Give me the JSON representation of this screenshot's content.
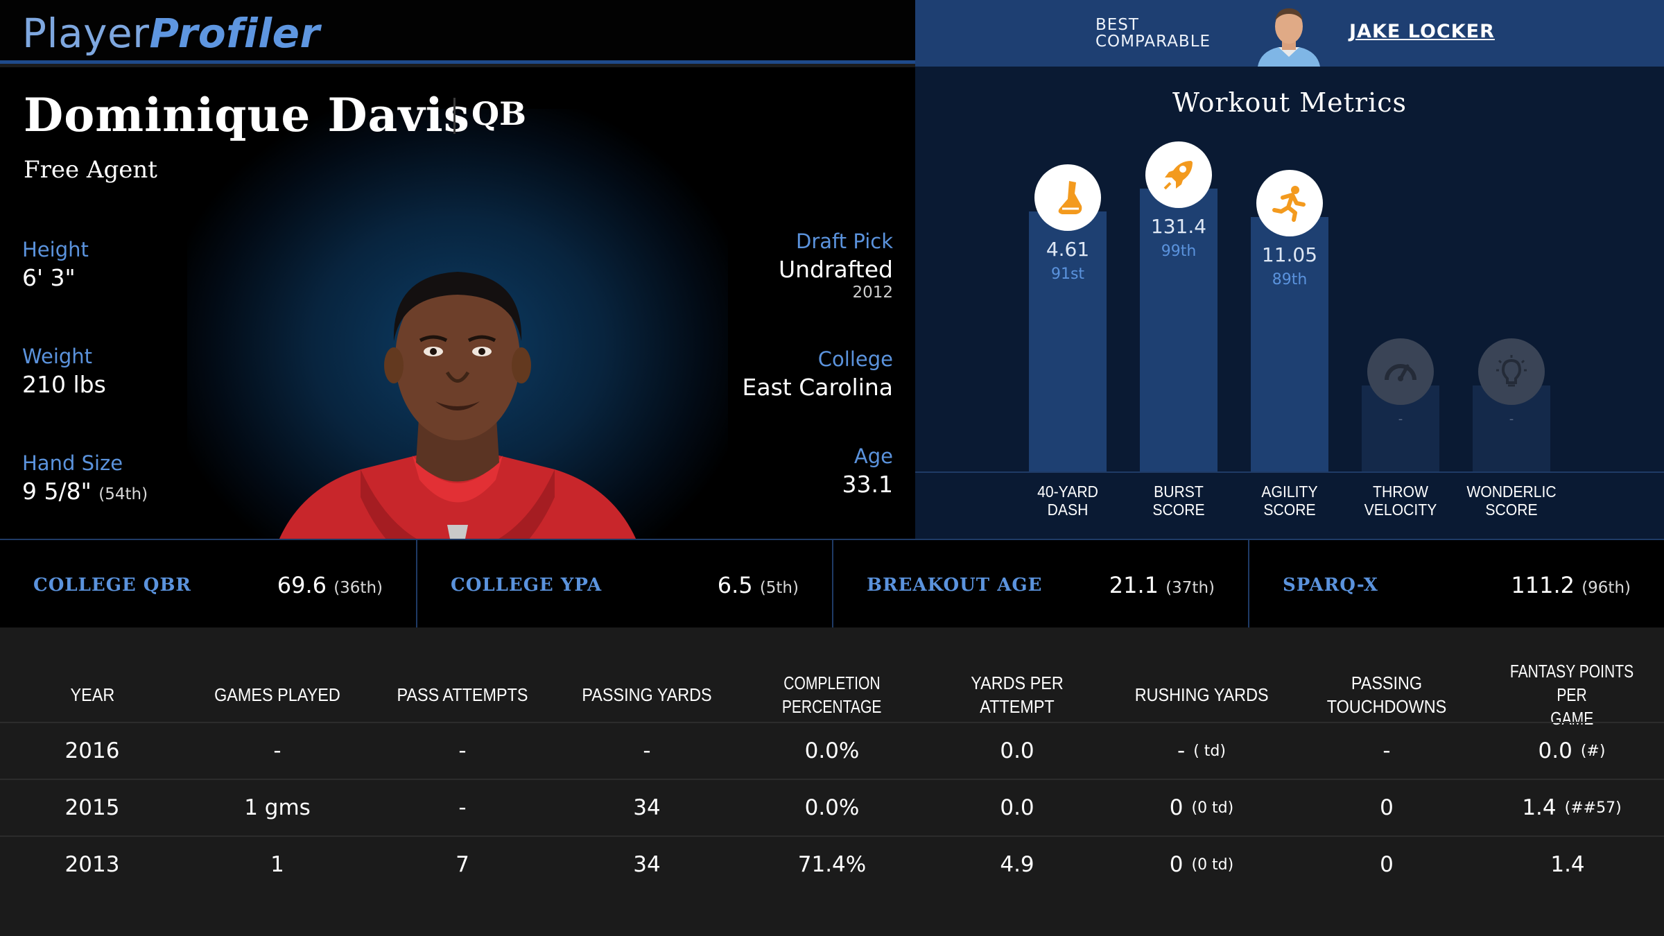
{
  "brand": {
    "part1": "Player",
    "part2": "Profiler"
  },
  "comparable": {
    "label_line1": "BEST",
    "label_line2": "COMPARABLE",
    "name": "JAKE LOCKER"
  },
  "player": {
    "name": "Dominique Davis",
    "position": "QB",
    "team": "Free Agent",
    "height_label": "Height",
    "height": "6' 3\"",
    "weight_label": "Weight",
    "weight": "210 lbs",
    "hand_label": "Hand Size",
    "hand": "9 5/8\"",
    "hand_pct": "(54th)",
    "draft_label": "Draft Pick",
    "draft": "Undrafted",
    "draft_year": "2012",
    "college_label": "College",
    "college": "East Carolina",
    "age_label": "Age",
    "age": "33.1"
  },
  "workout": {
    "title": "Workout Metrics",
    "metrics": [
      {
        "label1": "40-YARD",
        "label2": "DASH",
        "value": "4.61",
        "pct": "91st",
        "percentile": 91,
        "icon": "shoe-icon",
        "active": true
      },
      {
        "label1": "BURST",
        "label2": "SCORE",
        "value": "131.4",
        "pct": "99th",
        "percentile": 99,
        "icon": "rocket-icon",
        "active": true
      },
      {
        "label1": "AGILITY",
        "label2": "SCORE",
        "value": "11.05",
        "pct": "89th",
        "percentile": 89,
        "icon": "runner-icon",
        "active": true
      },
      {
        "label1": "THROW",
        "label2": "VELOCITY",
        "value": "-",
        "pct": "",
        "percentile": 30,
        "icon": "speedometer-icon",
        "active": false
      },
      {
        "label1": "WONDERLIC",
        "label2": "SCORE",
        "value": "-",
        "pct": "",
        "percentile": 30,
        "icon": "lightbulb-icon",
        "active": false
      }
    ]
  },
  "key_stats": [
    {
      "label": "COLLEGE QBR",
      "value": "69.6",
      "pct": "(36th)"
    },
    {
      "label": "COLLEGE YPA",
      "value": "6.5",
      "pct": "(5th)"
    },
    {
      "label": "BREAKOUT AGE",
      "value": "21.1",
      "pct": "(37th)"
    },
    {
      "label": "SPARQ-X",
      "value": "111.2",
      "pct": "(96th)"
    }
  ],
  "table": {
    "headers": [
      [
        "YEAR"
      ],
      [
        "GAMES PLAYED"
      ],
      [
        "PASS ATTEMPTS"
      ],
      [
        "PASSING YARDS"
      ],
      [
        "COMPLETION",
        "PERCENTAGE"
      ],
      [
        "YARDS PER ATTEMPT"
      ],
      [
        "RUSHING YARDS"
      ],
      [
        "PASSING TOUCHDOWNS"
      ],
      [
        "FANTASY POINTS PER",
        "GAME"
      ]
    ],
    "rows": [
      {
        "year": "2016",
        "games": "-",
        "attempts": "-",
        "yards": "-",
        "comp": "0.0%",
        "ypa": "0.0",
        "rush": "-",
        "rush_td": "( td)",
        "td": "-",
        "fp": "0.0",
        "fp_rank": "(#)"
      },
      {
        "year": "2015",
        "games": "1 gms",
        "attempts": "-",
        "yards": "34",
        "comp": "0.0%",
        "ypa": "0.0",
        "rush": "0",
        "rush_td": "(0 td)",
        "td": "0",
        "fp": "1.4",
        "fp_rank": "(##57)"
      },
      {
        "year": "2013",
        "games": "1",
        "attempts": "7",
        "yards": "34",
        "comp": "71.4%",
        "ypa": "4.9",
        "rush": "0",
        "rush_td": "(0 td)",
        "td": "0",
        "fp": "1.4",
        "fp_rank": ""
      }
    ]
  }
}
